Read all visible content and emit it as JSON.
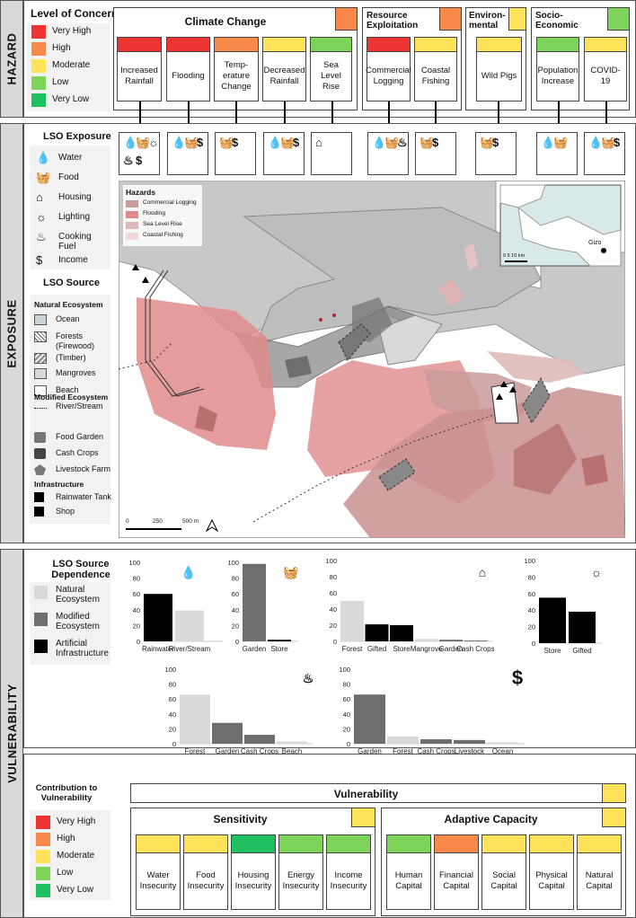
{
  "colors": {
    "very_high": "#ee3333",
    "high": "#f7894a",
    "moderate": "#fde25a",
    "low": "#7ed35a",
    "very_low": "#1fc060",
    "natural_bar": "#d9d9d9",
    "modified_bar": "#6e6e6e",
    "artificial_bar": "#000000"
  },
  "hazard": {
    "side_label": "HAZARD",
    "legend_title": "Level of Concern",
    "legend": [
      {
        "label": "Very High",
        "color": "#ee3333"
      },
      {
        "label": "High",
        "color": "#f7894a"
      },
      {
        "label": "Moderate",
        "color": "#fde25a"
      },
      {
        "label": "Low",
        "color": "#7ed35a"
      },
      {
        "label": "Very Low",
        "color": "#1fc060"
      }
    ],
    "categories": [
      {
        "title": "Climate Change",
        "level_color": "#f7894a"
      },
      {
        "title": "Resource Exploitation",
        "level_color": "#f7894a"
      },
      {
        "title": "Environ-mental",
        "level_color": "#fde25a"
      },
      {
        "title": "Socio-Economic",
        "level_color": "#7ed35a"
      }
    ],
    "items": [
      {
        "label": "Increased Rainfall",
        "color": "#ee3333"
      },
      {
        "label": "Flooding",
        "color": "#ee3333"
      },
      {
        "label": "Temp-erature Change",
        "color": "#f7894a"
      },
      {
        "label": "Decreased Rainfall",
        "color": "#fde25a"
      },
      {
        "label": "Sea Level Rise",
        "color": "#7ed35a"
      },
      {
        "label": "Commercial Logging",
        "color": "#ee3333"
      },
      {
        "label": "Coastal Fishing",
        "color": "#fde25a"
      },
      {
        "label": "Wild Pigs",
        "color": "#fde25a"
      },
      {
        "label": "Population Increase",
        "color": "#7ed35a"
      },
      {
        "label": "COVID-19",
        "color": "#fde25a"
      }
    ]
  },
  "exposure": {
    "side_label": "EXPOSURE",
    "lso_exposure_title": "LSO Exposure",
    "lso_exposure": [
      {
        "icon": "water-drops-icon",
        "glyph": "💧",
        "label": "Water"
      },
      {
        "icon": "food-basket-icon",
        "glyph": "🧺",
        "label": "Food"
      },
      {
        "icon": "house-icon",
        "glyph": "⌂",
        "label": "Housing"
      },
      {
        "icon": "light-bulb-icon",
        "glyph": "☼",
        "label": "Lighting"
      },
      {
        "icon": "flame-icon",
        "glyph": "♨",
        "label": "Cooking Fuel"
      },
      {
        "icon": "dollar-icon",
        "glyph": "$",
        "label": "Income"
      }
    ],
    "lso_source_title": "LSO Source",
    "natural_title": "Natural Ecosystem",
    "natural": [
      "Ocean",
      "Forests (Firewood)",
      "(Timber)",
      "Mangroves",
      "Beach",
      "River/Stream"
    ],
    "modified_title": "Modified Ecosystem",
    "modified": [
      "Food Garden",
      "Cash Crops",
      "Livestock Farm"
    ],
    "infra_title": "Infrastructure",
    "infra": [
      "Rainwater Tank",
      "Shop"
    ],
    "map": {
      "hazards_title": "Hazards",
      "hazards": [
        {
          "label": "Commercial Logging",
          "color": "#c99a9a"
        },
        {
          "label": "Flooding",
          "color": "#e08b8b"
        },
        {
          "label": "Sea Level Rise",
          "color": "#dfbaba"
        },
        {
          "label": "Coastal Fishing",
          "color": "#f2d8d8"
        }
      ],
      "scale_0": "0",
      "scale_250": "250",
      "scale_500": "500 m",
      "inset_scale": "0   5   10 km",
      "inset_place": "Gizo"
    }
  },
  "vulnerability": {
    "side_label": "VULNERABILITY",
    "dependence_title": "LSO Source Dependence",
    "dependence_legend": [
      {
        "label": "Natural Ecosystem",
        "color": "#d9d9d9"
      },
      {
        "label": "Modified Ecosystem",
        "color": "#6e6e6e"
      },
      {
        "label": "Artificial Infrastructure",
        "color": "#000000"
      }
    ],
    "contribution_title": "Contribution to Vulnerability",
    "contribution_legend": [
      {
        "label": "Very High",
        "color": "#ee3333"
      },
      {
        "label": "High",
        "color": "#f7894a"
      },
      {
        "label": "Moderate",
        "color": "#fde25a"
      },
      {
        "label": "Low",
        "color": "#7ed35a"
      },
      {
        "label": "Very Low",
        "color": "#1fc060"
      }
    ],
    "vulnerability_title": "Vulnerability",
    "vulnerability_color": "#fde25a",
    "sensitivity_title": "Sensitivity",
    "sensitivity_color": "#fde25a",
    "sensitivity": [
      {
        "label": "Water Insecurity",
        "color": "#fde25a"
      },
      {
        "label": "Food Insecurity",
        "color": "#fde25a"
      },
      {
        "label": "Housing Insecurity",
        "color": "#1fc060"
      },
      {
        "label": "Energy Insecurity",
        "color": "#7ed35a"
      },
      {
        "label": "Income Insecurity",
        "color": "#7ed35a"
      }
    ],
    "adaptive_title": "Adaptive Capacity",
    "adaptive_color": "#fde25a",
    "adaptive": [
      {
        "label": "Human Capital",
        "color": "#7ed35a"
      },
      {
        "label": "Financial Capital",
        "color": "#f7894a"
      },
      {
        "label": "Social Capital",
        "color": "#fde25a"
      },
      {
        "label": "Physical Capital",
        "color": "#fde25a"
      },
      {
        "label": "Natural Capital",
        "color": "#fde25a"
      }
    ]
  },
  "chart_data": [
    {
      "type": "bar",
      "icon": "water-drops-icon",
      "ylim": [
        0,
        100
      ],
      "yticks": [
        0,
        20,
        40,
        60,
        80,
        100
      ],
      "categories": [
        "Rainwater",
        "River/Stream"
      ],
      "values": [
        60,
        39
      ],
      "colors": [
        "#000000",
        "#d9d9d9"
      ]
    },
    {
      "type": "bar",
      "icon": "food-basket-icon",
      "ylim": [
        0,
        100
      ],
      "yticks": [
        0,
        20,
        40,
        60,
        80,
        100
      ],
      "categories": [
        "Garden",
        "Store"
      ],
      "values": [
        98,
        2
      ],
      "colors": [
        "#6e6e6e",
        "#000000"
      ]
    },
    {
      "type": "bar",
      "icon": "house-icon",
      "ylim": [
        0,
        100
      ],
      "yticks": [
        0,
        20,
        40,
        60,
        80,
        100
      ],
      "categories": [
        "Forest",
        "Gifted",
        "Store",
        "Mangrove",
        "Garden",
        "Cash Crops"
      ],
      "values": [
        50,
        21,
        20,
        3,
        2,
        1
      ],
      "colors": [
        "#d9d9d9",
        "#000000",
        "#000000",
        "#d9d9d9",
        "#6e6e6e",
        "#6e6e6e"
      ]
    },
    {
      "type": "bar",
      "icon": "light-bulb-icon",
      "ylim": [
        0,
        100
      ],
      "yticks": [
        0,
        20,
        40,
        60,
        80,
        100
      ],
      "categories": [
        "Store",
        "Gifted"
      ],
      "values": [
        55,
        38
      ],
      "colors": [
        "#000000",
        "#000000"
      ]
    },
    {
      "type": "bar",
      "icon": "flame-icon",
      "ylim": [
        0,
        100
      ],
      "yticks": [
        0,
        20,
        40,
        60,
        80,
        100
      ],
      "categories": [
        "Forest",
        "Garden",
        "Cash Crops",
        "Beach"
      ],
      "values": [
        66,
        28,
        12,
        3
      ],
      "colors": [
        "#d9d9d9",
        "#6e6e6e",
        "#6e6e6e",
        "#d9d9d9"
      ]
    },
    {
      "type": "bar",
      "icon": "dollar-icon",
      "ylim": [
        0,
        100
      ],
      "yticks": [
        0,
        20,
        40,
        60,
        80,
        100
      ],
      "categories": [
        "Garden",
        "Forest",
        "Cash Crops",
        "Livestock",
        "Ocean"
      ],
      "values": [
        66,
        10,
        6,
        5,
        2
      ],
      "colors": [
        "#6e6e6e",
        "#d9d9d9",
        "#6e6e6e",
        "#6e6e6e",
        "#d9d9d9"
      ]
    }
  ]
}
